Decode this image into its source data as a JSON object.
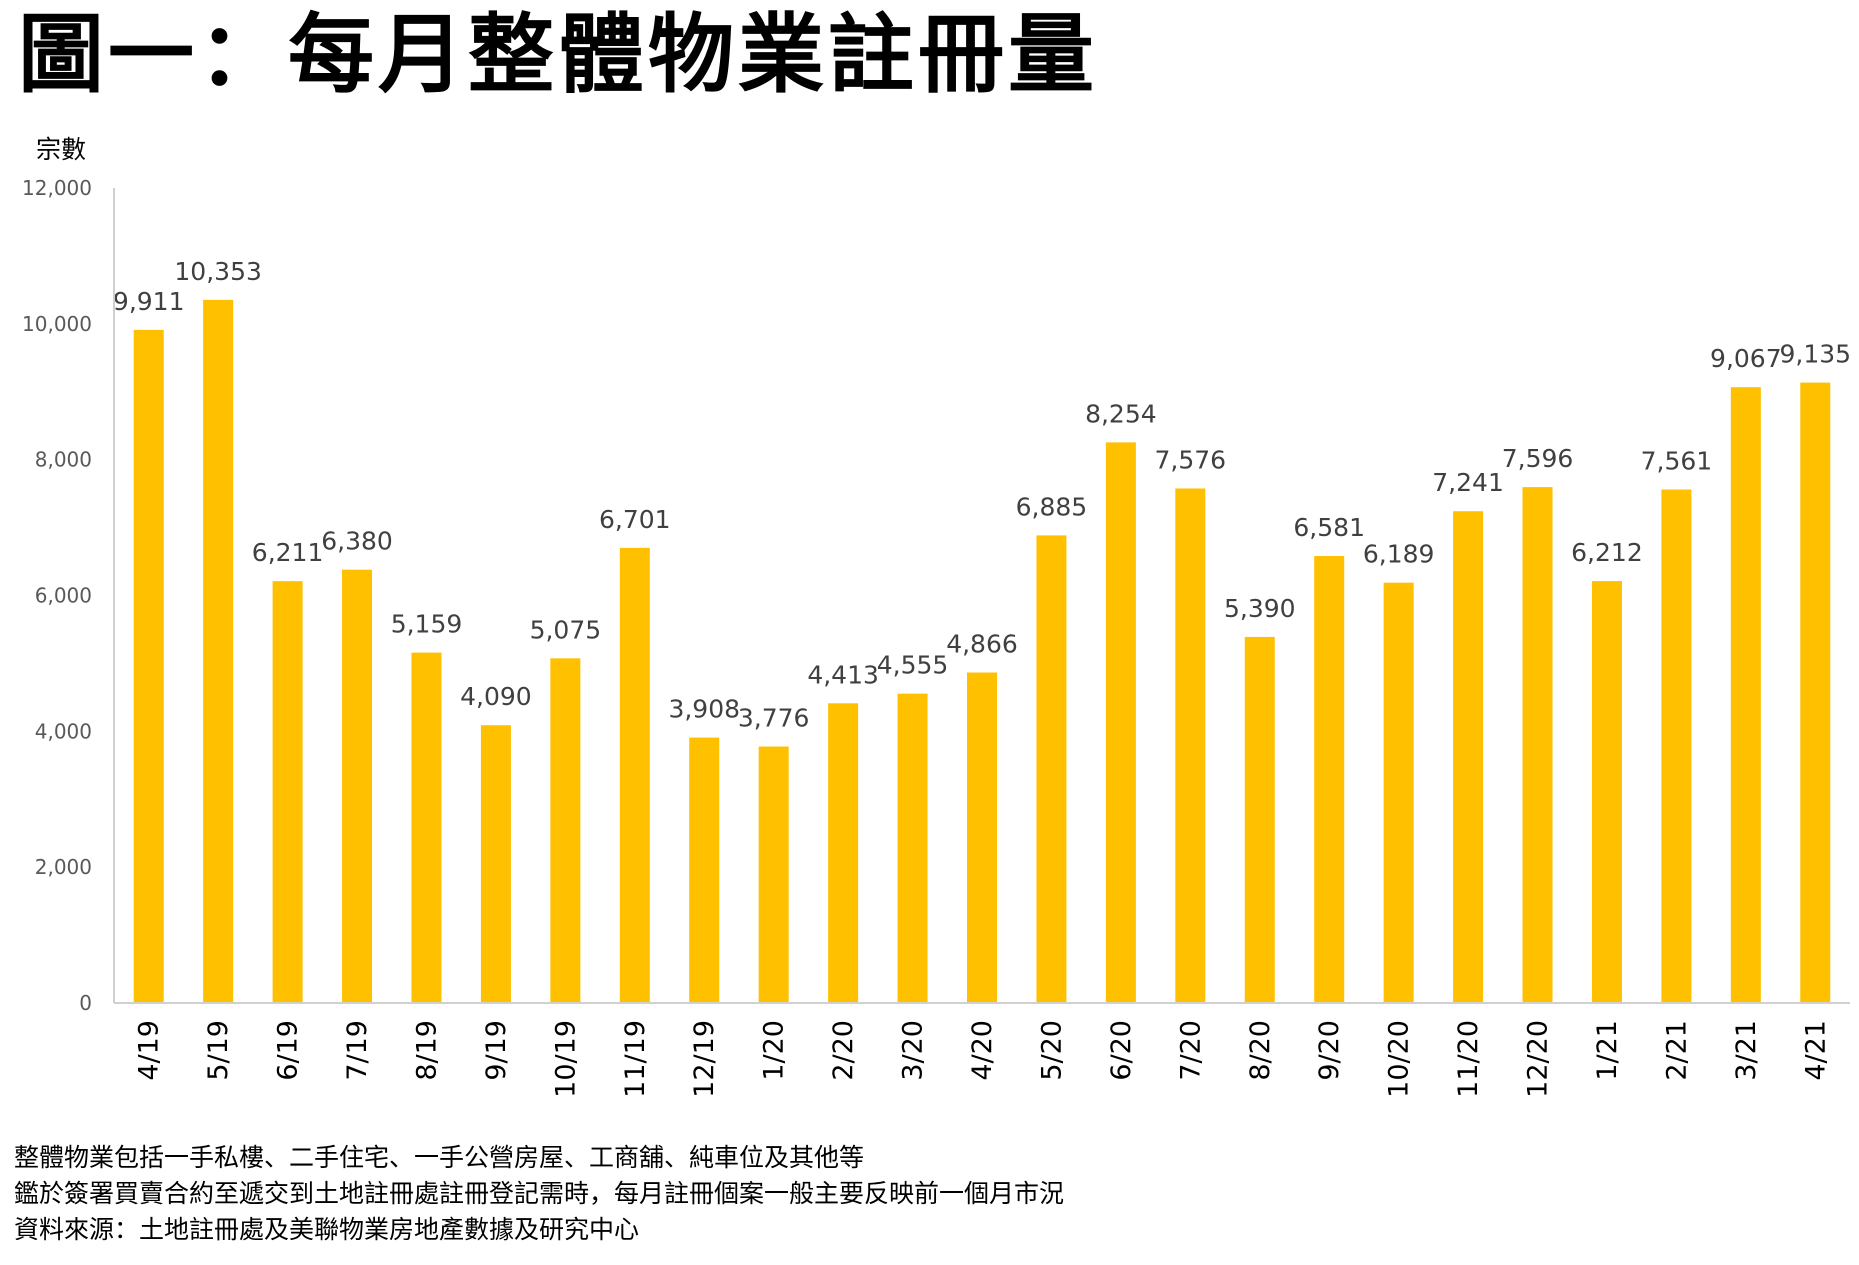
{
  "title": "圖一：每月整體物業註冊量",
  "chart_data": {
    "type": "bar",
    "ylabel": "宗數",
    "xlabel": "",
    "ylim": [
      0,
      12000
    ],
    "yticks": [
      0,
      2000,
      4000,
      6000,
      8000,
      10000,
      12000
    ],
    "ytick_labels": [
      "0",
      "2,000",
      "4,000",
      "6,000",
      "8,000",
      "10,000",
      "12,000"
    ],
    "bar_color": "#FFC000",
    "grid": false,
    "categories": [
      "4/19",
      "5/19",
      "6/19",
      "7/19",
      "8/19",
      "9/19",
      "10/19",
      "11/19",
      "12/19",
      "1/20",
      "2/20",
      "3/20",
      "4/20",
      "5/20",
      "6/20",
      "7/20",
      "8/20",
      "9/20",
      "10/20",
      "11/20",
      "12/20",
      "1/21",
      "2/21",
      "3/21",
      "4/21"
    ],
    "values": [
      9911,
      10353,
      6211,
      6380,
      5159,
      4090,
      5075,
      6701,
      3908,
      3776,
      4413,
      4555,
      4866,
      6885,
      8254,
      7576,
      5390,
      6581,
      6189,
      7241,
      7596,
      6212,
      7561,
      9067,
      9135
    ],
    "data_labels": [
      "9,911",
      "10,353",
      "6,211",
      "6,380",
      "5,159",
      "4,090",
      "5,075",
      "6,701",
      "3,908",
      "3,776",
      "4,413",
      "4,555",
      "4,866",
      "6,885",
      "8,254",
      "7,576",
      "5,390",
      "6,581",
      "6,189",
      "7,241",
      "7,596",
      "6,212",
      "7,561",
      "9,067",
      "9,135"
    ]
  },
  "notes": [
    "整體物業包括一手私樓、二手住宅、一手公營房屋、工商舖、純車位及其他等",
    "鑑於簽署買賣合約至遞交到土地註冊處註冊登記需時，每月註冊個案一般主要反映前一個月市況",
    "資料來源：土地註冊處及美聯物業房地產數據及研究中心"
  ]
}
